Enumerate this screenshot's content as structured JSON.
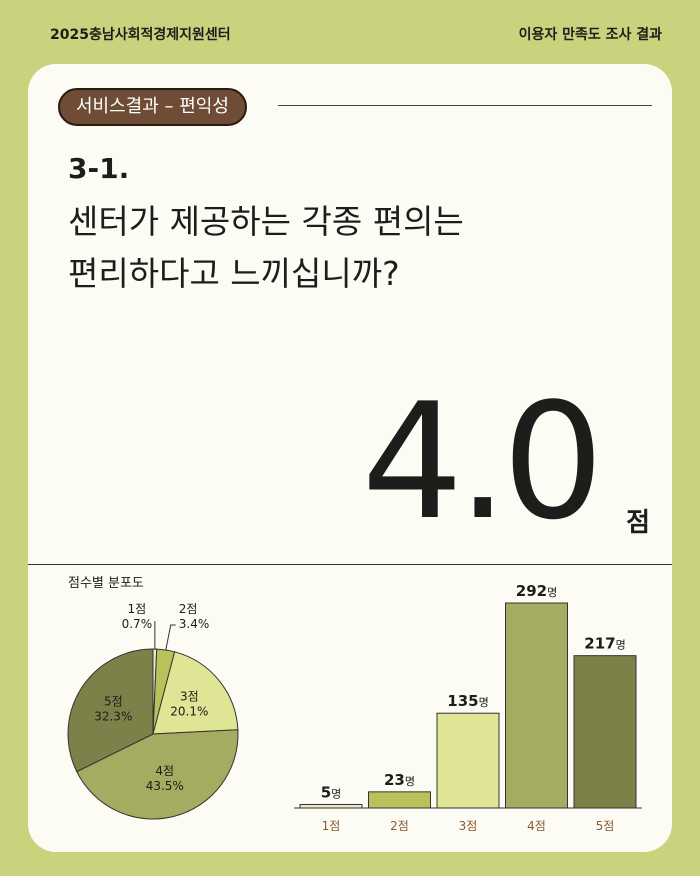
{
  "header": {
    "org": "2025충남사회적경제지원센터",
    "report": "이용자 만족도 조사 결과"
  },
  "section_tag": "서비스결과 – 편익성",
  "question": {
    "number": "3-1.",
    "line1": "센터가 제공하는 각종 편의는",
    "line2": "편리하다고 느끼십니까?"
  },
  "score": {
    "value": "4.0",
    "unit": "점"
  },
  "distribution_title": "점수별 분포도",
  "colors": {
    "background": "#c9d37e",
    "card": "#fcfbf4",
    "pill": "#6f4c36",
    "s1": "#e9ebc8",
    "s2": "#b9c25a",
    "s3": "#dfe595",
    "s4": "#a3ac60",
    "s5": "#7d8149"
  },
  "chart_data": [
    {
      "type": "pie",
      "title": "점수별 분포도",
      "categories": [
        "1점",
        "2점",
        "3점",
        "4점",
        "5점"
      ],
      "values": [
        0.7,
        3.4,
        20.1,
        43.5,
        32.3
      ],
      "labels": [
        "0.7%",
        "3.4%",
        "20.1%",
        "43.5%",
        "32.3%"
      ]
    },
    {
      "type": "bar",
      "categories": [
        "1점",
        "2점",
        "3점",
        "4점",
        "5점"
      ],
      "values": [
        5,
        23,
        135,
        292,
        217
      ],
      "value_unit": "명",
      "ylim": [
        0,
        292
      ]
    }
  ]
}
